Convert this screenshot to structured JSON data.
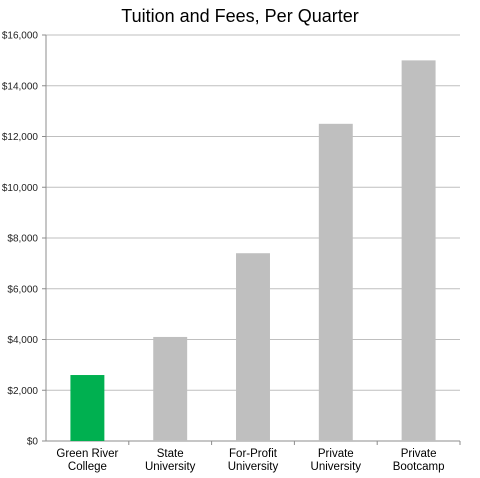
{
  "chart_data": {
    "type": "bar",
    "title": "Tuition and Fees, Per Quarter",
    "xlabel": "",
    "ylabel": "",
    "categories": [
      [
        "Green River",
        "College"
      ],
      [
        "State",
        "University"
      ],
      [
        "For-Profit",
        "University"
      ],
      [
        "Private",
        "University"
      ],
      [
        "Private",
        "Bootcamp"
      ]
    ],
    "values": [
      2600,
      4100,
      7400,
      12500,
      15000
    ],
    "ylim": [
      0,
      16000
    ],
    "yticks": [
      0,
      2000,
      4000,
      6000,
      8000,
      10000,
      12000,
      14000,
      16000
    ],
    "ytick_labels": [
      "$0",
      "$2,000",
      "$4,000",
      "$6,000",
      "$8,000",
      "$10,000",
      "$12,000",
      "$14,000",
      "$16,000"
    ],
    "grid": true,
    "colors": {
      "highlight": "#00b050",
      "default": "#bfbfbf",
      "grid": "#bfbfbf",
      "axis": "#8c8c8c"
    },
    "highlight_index": 0
  }
}
